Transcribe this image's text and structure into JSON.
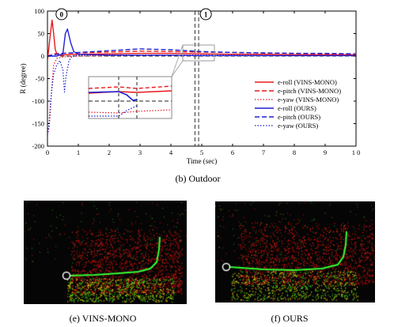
{
  "chart_data": {
    "type": "line",
    "xlabel": "Time (sec)",
    "ylabel": "R (degree)",
    "xlim": [
      0,
      10
    ],
    "ylim": [
      -200,
      100
    ],
    "xticks": [
      0,
      1,
      2,
      3,
      4,
      5,
      6,
      7,
      8,
      9,
      10
    ],
    "xtick_labels": [
      "0",
      "1",
      "2",
      "3",
      "4",
      "5",
      "6",
      "7",
      "8",
      "9",
      "1 0"
    ],
    "yticks": [
      100,
      50,
      0,
      -50,
      -100,
      -150,
      -200
    ],
    "ytick_labels": [
      "100",
      "50",
      "0",
      "-50",
      "-100",
      "-150",
      "-200"
    ],
    "grid": false,
    "legend_position": "right",
    "markers": [
      {
        "label": "0",
        "x": 0.2
      },
      {
        "label": "1",
        "x": 4.85
      }
    ],
    "vlines": [
      4.78,
      4.9
    ],
    "zoom_box": {
      "x": [
        4.0,
        5.5
      ],
      "y": [
        -5,
        12
      ]
    },
    "colors": {
      "vins": "#e8191d",
      "ours": "#1f1fd6"
    },
    "series": [
      {
        "name": "e-roll (VINS-MONO)",
        "color": "#e8191d",
        "style": "solid",
        "x": [
          0,
          0.08,
          0.15,
          0.2,
          0.25,
          0.3,
          0.4,
          0.6,
          1,
          2,
          3,
          4,
          5,
          6,
          7,
          8,
          9,
          10
        ],
        "y": [
          -10,
          40,
          80,
          50,
          15,
          5,
          2,
          3,
          4,
          5,
          6,
          6,
          5,
          4,
          4,
          3,
          3,
          3
        ]
      },
      {
        "name": "e-pitch (VINS-MONO)",
        "color": "#e8191d",
        "style": "dashed",
        "x": [
          0,
          0.1,
          0.2,
          0.4,
          1,
          2,
          3,
          4,
          5,
          6,
          7,
          8,
          9,
          10
        ],
        "y": [
          0,
          2,
          5,
          6,
          7,
          9,
          11,
          10,
          9,
          8,
          7,
          6,
          5,
          5
        ]
      },
      {
        "name": "e-yaw (VINS-MONO)",
        "color": "#e8191d",
        "style": "dotted",
        "x": [
          0,
          0.05,
          0.1,
          0.15,
          0.2,
          0.3,
          0.5,
          1,
          2,
          3,
          4,
          5,
          6,
          7,
          8,
          9,
          10
        ],
        "y": [
          -175,
          -160,
          -120,
          -60,
          -20,
          -5,
          -2,
          0,
          1,
          2,
          2,
          2,
          1,
          1,
          1,
          1,
          1
        ]
      },
      {
        "name": "e-roll (OURS)",
        "color": "#1f1fd6",
        "style": "solid",
        "x": [
          0,
          0.3,
          0.5,
          0.58,
          0.65,
          0.75,
          0.85,
          1,
          1.5,
          2,
          3,
          4,
          5,
          6,
          7,
          8,
          9,
          10
        ],
        "y": [
          0,
          0,
          5,
          50,
          60,
          30,
          10,
          4,
          3,
          2,
          2,
          2,
          1,
          1,
          1,
          1,
          1,
          1
        ]
      },
      {
        "name": "e-pitch (OURS)",
        "color": "#1f1fd6",
        "style": "dashed",
        "x": [
          0,
          0.2,
          0.5,
          1,
          2,
          3,
          4,
          5,
          6,
          7,
          8,
          9,
          10
        ],
        "y": [
          0,
          3,
          6,
          8,
          12,
          16,
          14,
          10,
          8,
          7,
          6,
          6,
          5
        ]
      },
      {
        "name": "e-yaw (OURS)",
        "color": "#1f1fd6",
        "style": "dotted",
        "x": [
          0,
          0.05,
          0.1,
          0.2,
          0.3,
          0.4,
          0.5,
          0.55,
          0.6,
          0.7,
          0.8,
          1,
          2,
          3,
          4,
          5,
          6,
          7,
          8,
          9,
          10
        ],
        "y": [
          -175,
          -150,
          -100,
          -40,
          -20,
          -10,
          -30,
          -80,
          -45,
          -10,
          0,
          2,
          3,
          2,
          2,
          2,
          2,
          1,
          1,
          1,
          1
        ]
      }
    ]
  },
  "captions": {
    "b": "(b)  Outdoor",
    "e": "(e)  VINS-MONO",
    "f": "(f)  OURS"
  },
  "maps": [
    {
      "name": "VINS-MONO",
      "trajectory_color": "#33ff33",
      "start_marker": "circle"
    },
    {
      "name": "OURS",
      "trajectory_color": "#33ff33",
      "start_marker": "circle"
    }
  ]
}
